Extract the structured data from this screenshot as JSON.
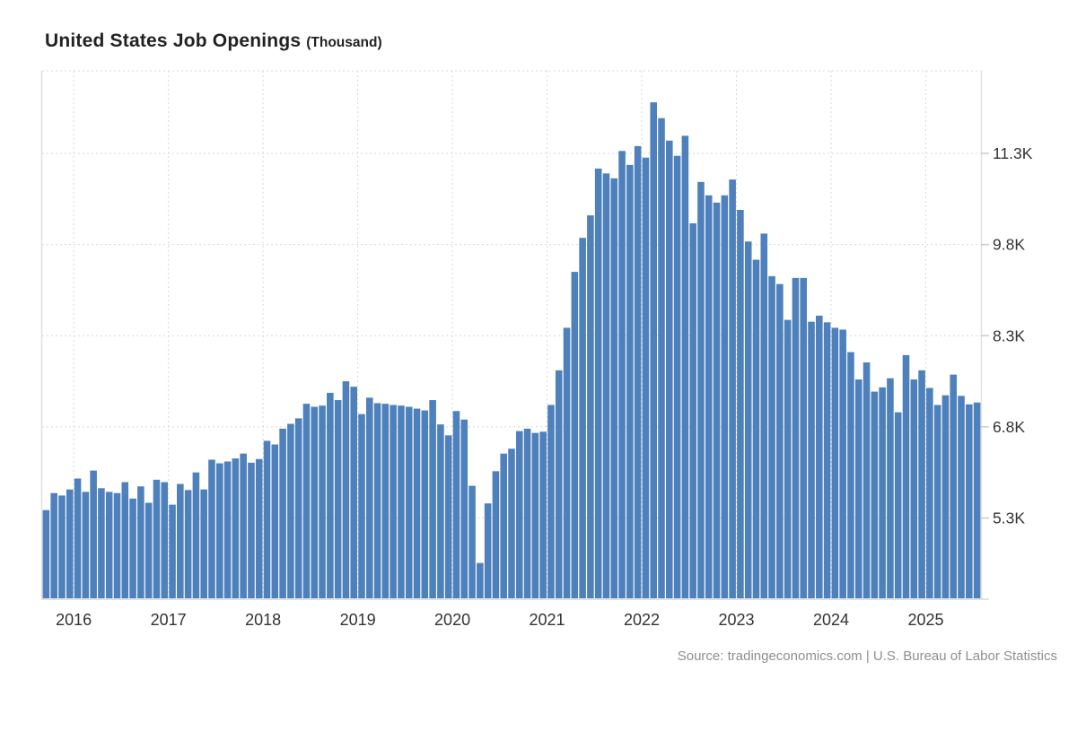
{
  "header": {
    "title": "United States Job Openings",
    "unit_label": "(Thousand)"
  },
  "source": {
    "text": "Source: tradingeconomics.com | U.S. Bureau of Labor Statistics"
  },
  "chart_data": {
    "type": "bar",
    "title": "United States Job Openings",
    "unit": "Thousand",
    "legend_position": "none",
    "grid": "dotted",
    "bar_color": "#4e81bc",
    "grid_color": "#d9d9d9",
    "border_color": "#e0e0e0",
    "axis_label_color": "#333333",
    "ylim": [
      3980,
      12660
    ],
    "y_ticks": [
      5300,
      6800,
      8300,
      9800,
      11300
    ],
    "y_tick_labels": [
      "5.3K",
      "6.8K",
      "8.3K",
      "9.8K",
      "11.3K"
    ],
    "x_year_ticks": [
      {
        "label": "2016",
        "index": 4
      },
      {
        "label": "2017",
        "index": 16
      },
      {
        "label": "2018",
        "index": 28
      },
      {
        "label": "2019",
        "index": 40
      },
      {
        "label": "2020",
        "index": 52
      },
      {
        "label": "2021",
        "index": 64
      },
      {
        "label": "2022",
        "index": 76
      },
      {
        "label": "2023",
        "index": 88
      },
      {
        "label": "2024",
        "index": 100
      },
      {
        "label": "2025",
        "index": 112
      }
    ],
    "months": [
      "2015-09",
      "2015-10",
      "2015-11",
      "2015-12",
      "2016-01",
      "2016-02",
      "2016-03",
      "2016-04",
      "2016-05",
      "2016-06",
      "2016-07",
      "2016-08",
      "2016-09",
      "2016-10",
      "2016-11",
      "2016-12",
      "2017-01",
      "2017-02",
      "2017-03",
      "2017-04",
      "2017-05",
      "2017-06",
      "2017-07",
      "2017-08",
      "2017-09",
      "2017-10",
      "2017-11",
      "2017-12",
      "2018-01",
      "2018-02",
      "2018-03",
      "2018-04",
      "2018-05",
      "2018-06",
      "2018-07",
      "2018-08",
      "2018-09",
      "2018-10",
      "2018-11",
      "2018-12",
      "2019-01",
      "2019-02",
      "2019-03",
      "2019-04",
      "2019-05",
      "2019-06",
      "2019-07",
      "2019-08",
      "2019-09",
      "2019-10",
      "2019-11",
      "2019-12",
      "2020-01",
      "2020-02",
      "2020-03",
      "2020-04",
      "2020-05",
      "2020-06",
      "2020-07",
      "2020-08",
      "2020-09",
      "2020-10",
      "2020-11",
      "2020-12",
      "2021-01",
      "2021-02",
      "2021-03",
      "2021-04",
      "2021-05",
      "2021-06",
      "2021-07",
      "2021-08",
      "2021-09",
      "2021-10",
      "2021-11",
      "2021-12",
      "2022-01",
      "2022-02",
      "2022-03",
      "2022-04",
      "2022-05",
      "2022-06",
      "2022-07",
      "2022-08",
      "2022-09",
      "2022-10",
      "2022-11",
      "2022-12",
      "2023-01",
      "2023-02",
      "2023-03",
      "2023-04",
      "2023-05",
      "2023-06",
      "2023-07",
      "2023-08",
      "2023-09",
      "2023-10",
      "2023-11",
      "2023-12",
      "2024-01",
      "2024-02",
      "2024-03",
      "2024-04",
      "2024-05",
      "2024-06",
      "2024-07",
      "2024-08",
      "2024-09",
      "2024-10",
      "2024-11",
      "2024-12",
      "2025-01",
      "2025-02",
      "2025-03",
      "2025-04",
      "2025-05",
      "2025-06",
      "2025-07"
    ],
    "values": [
      5430,
      5710,
      5670,
      5770,
      5950,
      5730,
      6080,
      5790,
      5730,
      5710,
      5890,
      5620,
      5820,
      5550,
      5930,
      5890,
      5520,
      5860,
      5760,
      6050,
      5770,
      6260,
      6200,
      6230,
      6280,
      6360,
      6210,
      6270,
      6570,
      6510,
      6770,
      6850,
      6940,
      7180,
      7130,
      7150,
      7360,
      7240,
      7550,
      7460,
      7010,
      7280,
      7190,
      7180,
      7160,
      7150,
      7130,
      7100,
      7070,
      7240,
      6840,
      6660,
      7060,
      6920,
      5830,
      4560,
      5540,
      6070,
      6360,
      6440,
      6730,
      6770,
      6700,
      6720,
      7160,
      7730,
      8430,
      9350,
      9910,
      10280,
      11050,
      10970,
      10890,
      11340,
      11110,
      11420,
      11230,
      12140,
      11880,
      11510,
      11260,
      11590,
      10150,
      10830,
      10610,
      10490,
      10610,
      10870,
      10370,
      9850,
      9550,
      9980,
      9280,
      9150,
      8560,
      9250,
      9250,
      8530,
      8630,
      8520,
      8430,
      8400,
      8030,
      7580,
      7860,
      7380,
      7450,
      7600,
      7040,
      7980,
      7580,
      7730,
      7440,
      7160,
      7320,
      7660,
      7310,
      7170,
      7200
    ]
  }
}
